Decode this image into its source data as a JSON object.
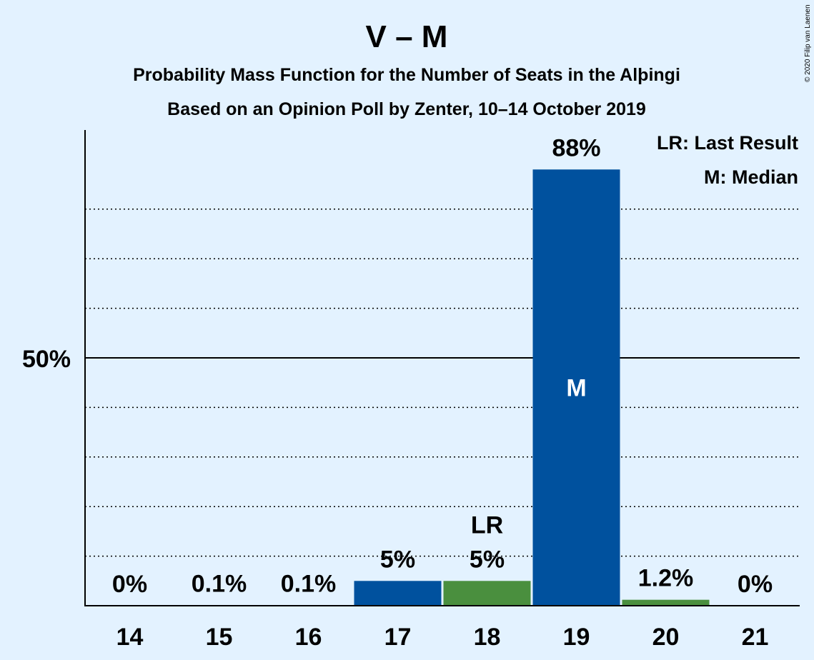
{
  "chart_data": {
    "type": "bar",
    "title": "V – M",
    "subtitle_1": "Probability Mass Function for the Number of Seats in the Alþingi",
    "subtitle_2": "Based on an Opinion Poll by Zenter, 10–14 October 2019",
    "copyright": "© 2020 Filip van Laenen",
    "categories": [
      "14",
      "15",
      "16",
      "17",
      "18",
      "19",
      "20",
      "21"
    ],
    "values": [
      0,
      0.1,
      0.1,
      5,
      5,
      88,
      1.2,
      0
    ],
    "value_labels": [
      "0%",
      "0.1%",
      "0.1%",
      "5%",
      "5%",
      "88%",
      "1.2%",
      "0%"
    ],
    "bar_colors": [
      "#00519e",
      "#00519e",
      "#00519e",
      "#00519e",
      "#4a8f3e",
      "#00519e",
      "#4a8f3e",
      "#00519e"
    ],
    "ylim": [
      0,
      96
    ],
    "ytick_label": "50%",
    "ytick_value": 50,
    "dotted_gridlines": [
      10,
      20,
      30,
      40,
      60,
      70,
      80
    ],
    "last_result": {
      "category": "18",
      "label": "LR"
    },
    "median": {
      "category": "19",
      "label": "M"
    },
    "legend": [
      "LR: Last Result",
      "M: Median"
    ],
    "legend_position": "top-right"
  }
}
